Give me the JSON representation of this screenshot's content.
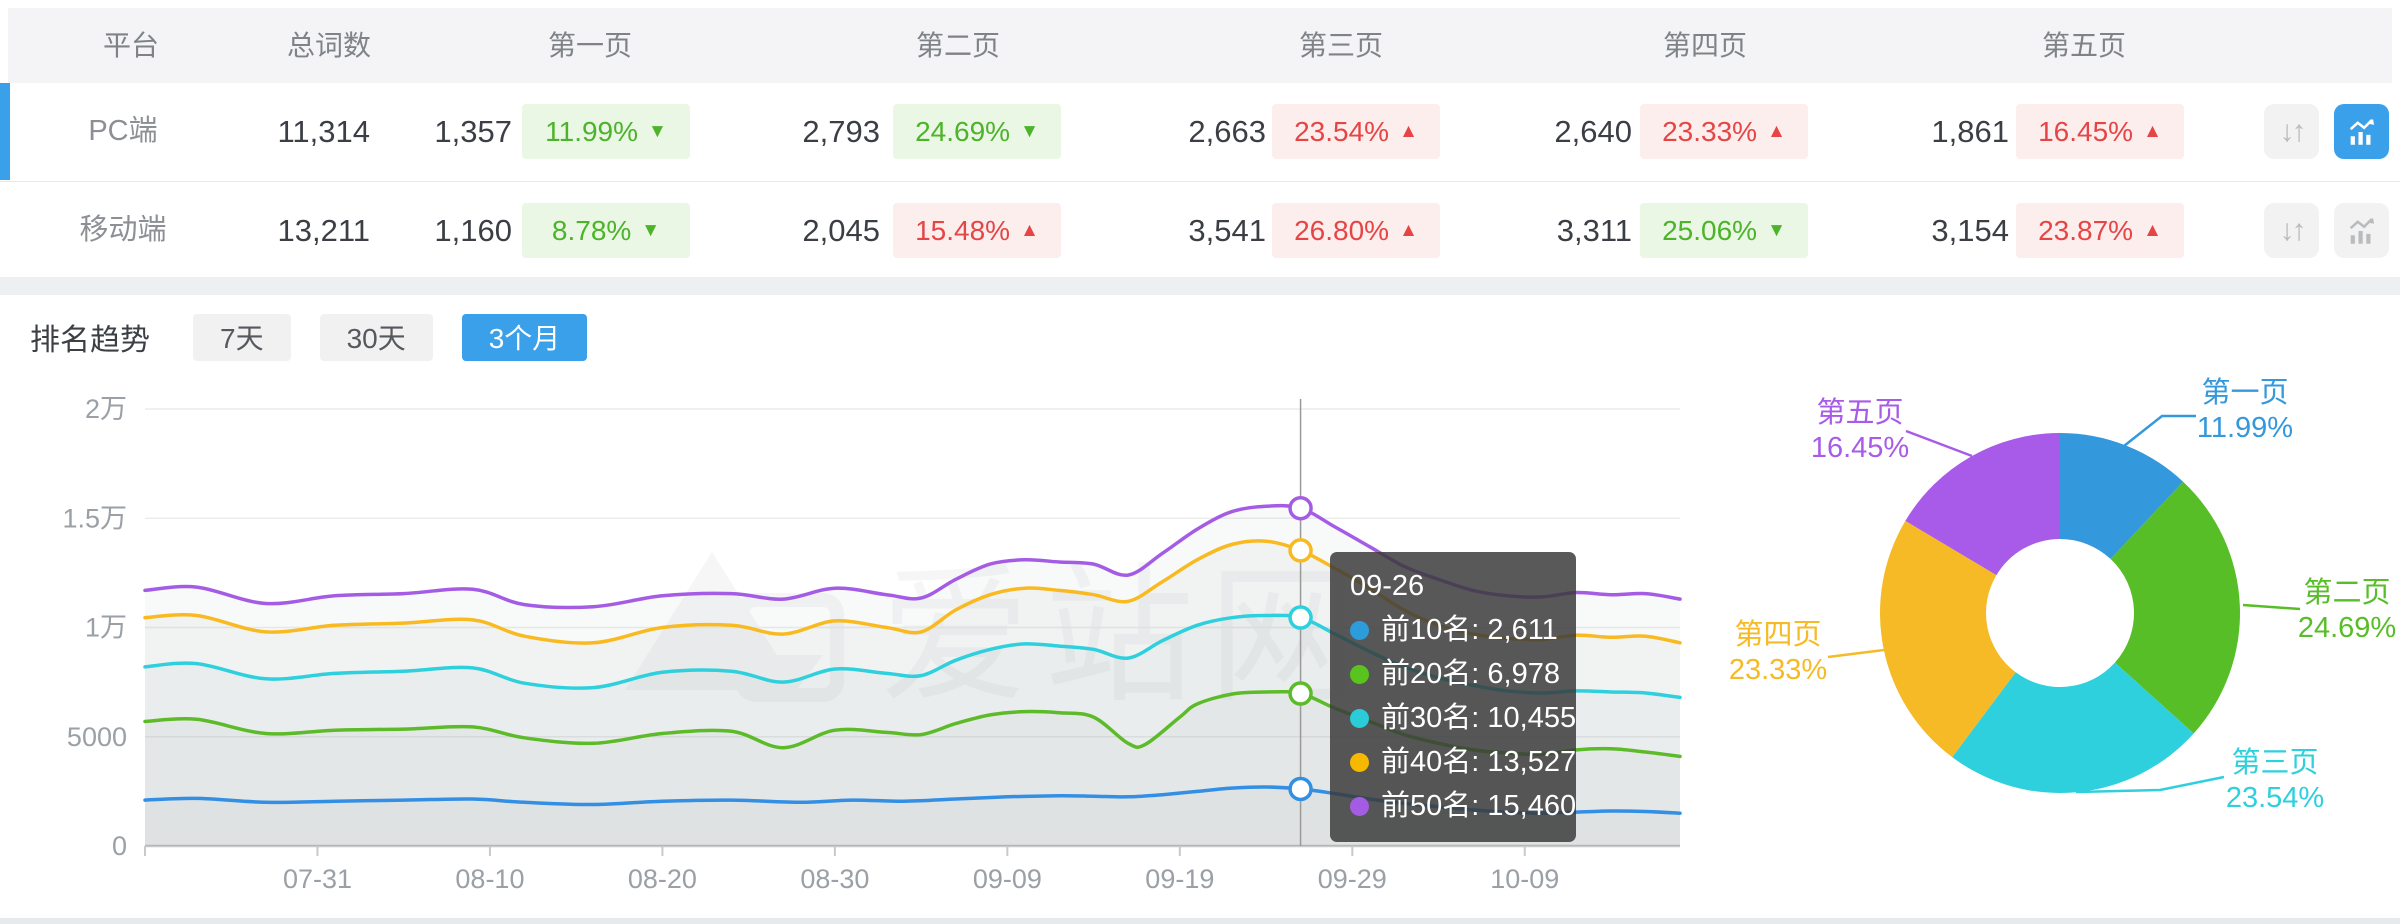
{
  "table": {
    "columns": [
      "平台",
      "总词数",
      "第一页",
      "第二页",
      "第三页",
      "第四页",
      "第五页"
    ],
    "rows": [
      {
        "platform": "PC端",
        "total": "11,314",
        "selected": true,
        "pages": [
          {
            "count": "1,357",
            "pct": "11.99%",
            "dir": "down"
          },
          {
            "count": "2,793",
            "pct": "24.69%",
            "dir": "down"
          },
          {
            "count": "2,663",
            "pct": "23.54%",
            "dir": "up"
          },
          {
            "count": "2,640",
            "pct": "23.33%",
            "dir": "up"
          },
          {
            "count": "1,861",
            "pct": "16.45%",
            "dir": "up"
          }
        ],
        "trend_chart_active": true
      },
      {
        "platform": "移动端",
        "total": "13,211",
        "selected": false,
        "pages": [
          {
            "count": "1,160",
            "pct": "8.78%",
            "dir": "down"
          },
          {
            "count": "2,045",
            "pct": "15.48%",
            "dir": "up"
          },
          {
            "count": "3,541",
            "pct": "26.80%",
            "dir": "up"
          },
          {
            "count": "3,311",
            "pct": "25.06%",
            "dir": "down"
          },
          {
            "count": "3,154",
            "pct": "23.87%",
            "dir": "up"
          }
        ],
        "trend_chart_active": false
      }
    ]
  },
  "trend": {
    "label": "排名趋势",
    "ranges": [
      "7天",
      "30天",
      "3个月"
    ],
    "active": "3个月"
  },
  "tooltip": {
    "date": "09-26",
    "items": [
      {
        "label": "前10名",
        "value": "2,611",
        "color": "#2d9cdb"
      },
      {
        "label": "前20名",
        "value": "6,978",
        "color": "#5ac41e"
      },
      {
        "label": "前30名",
        "value": "10,455",
        "color": "#2accd8"
      },
      {
        "label": "前40名",
        "value": "13,527",
        "color": "#f9b800"
      },
      {
        "label": "前50名",
        "value": "15,460",
        "color": "#a55ce5"
      }
    ]
  },
  "watermark": "爱站网",
  "colors": {
    "accent_blue": "#3aa0e9",
    "badge_green": "#4cb32a",
    "badge_red": "#e54545"
  },
  "chart_data": [
    {
      "type": "line",
      "title": "排名趋势 (3个月)",
      "x_axis": {
        "start_date": "07-21",
        "end_date": "10-18",
        "tick_labels": [
          "07-31",
          "08-10",
          "08-20",
          "08-30",
          "09-09",
          "09-19",
          "09-29",
          "10-09"
        ],
        "tick_days": [
          10,
          20,
          30,
          40,
          50,
          60,
          70,
          80
        ]
      },
      "y_axis": {
        "labels": [
          "0",
          "5000",
          "1万",
          "1.5万",
          "2万"
        ],
        "values": [
          0,
          5000,
          10000,
          15000,
          20000
        ],
        "max": 20000
      },
      "grid": true,
      "hover": {
        "day": 67,
        "date": "09-26"
      },
      "series": [
        {
          "name": "前10名",
          "color": "#338fe4",
          "points": [
            [
              0,
              2100
            ],
            [
              3,
              2180
            ],
            [
              7,
              2000
            ],
            [
              11,
              2050
            ],
            [
              15,
              2100
            ],
            [
              19,
              2150
            ],
            [
              22,
              2000
            ],
            [
              26,
              1900
            ],
            [
              30,
              2050
            ],
            [
              34,
              2100
            ],
            [
              38,
              2000
            ],
            [
              41,
              2100
            ],
            [
              44,
              2050
            ],
            [
              47,
              2150
            ],
            [
              50,
              2250
            ],
            [
              53,
              2300
            ],
            [
              55,
              2280
            ],
            [
              57,
              2250
            ],
            [
              59,
              2350
            ],
            [
              61,
              2500
            ],
            [
              63,
              2650
            ],
            [
              65,
              2700
            ],
            [
              67,
              2611
            ],
            [
              69,
              2400
            ],
            [
              71,
              2150
            ],
            [
              73,
              1950
            ],
            [
              75,
              1800
            ],
            [
              77,
              1650
            ],
            [
              79,
              1550
            ],
            [
              81,
              1500
            ],
            [
              83,
              1550
            ],
            [
              85,
              1600
            ],
            [
              87,
              1580
            ],
            [
              89,
              1500
            ]
          ]
        },
        {
          "name": "前20名",
          "color": "#5dbb2a",
          "points": [
            [
              0,
              5700
            ],
            [
              3,
              5800
            ],
            [
              7,
              5150
            ],
            [
              11,
              5300
            ],
            [
              15,
              5350
            ],
            [
              19,
              5450
            ],
            [
              22,
              4950
            ],
            [
              26,
              4700
            ],
            [
              30,
              5150
            ],
            [
              34,
              5250
            ],
            [
              37,
              4500
            ],
            [
              40,
              5300
            ],
            [
              43,
              5200
            ],
            [
              45,
              5100
            ],
            [
              47,
              5600
            ],
            [
              49,
              6000
            ],
            [
              51,
              6150
            ],
            [
              53,
              6100
            ],
            [
              55,
              5900
            ],
            [
              57,
              4700
            ],
            [
              58,
              4650
            ],
            [
              60,
              5900
            ],
            [
              61,
              6500
            ],
            [
              63,
              6950
            ],
            [
              65,
              7050
            ],
            [
              67,
              6978
            ],
            [
              69,
              6300
            ],
            [
              71,
              5700
            ],
            [
              73,
              5100
            ],
            [
              75,
              4700
            ],
            [
              77,
              4400
            ],
            [
              79,
              4250
            ],
            [
              81,
              4200
            ],
            [
              83,
              4400
            ],
            [
              85,
              4450
            ],
            [
              87,
              4300
            ],
            [
              89,
              4100
            ]
          ]
        },
        {
          "name": "前30名",
          "color": "#2fd0dd",
          "points": [
            [
              0,
              8200
            ],
            [
              3,
              8350
            ],
            [
              7,
              7650
            ],
            [
              11,
              7900
            ],
            [
              15,
              8000
            ],
            [
              19,
              8150
            ],
            [
              22,
              7450
            ],
            [
              26,
              7250
            ],
            [
              30,
              7950
            ],
            [
              34,
              8000
            ],
            [
              37,
              7500
            ],
            [
              40,
              8100
            ],
            [
              43,
              7900
            ],
            [
              45,
              7800
            ],
            [
              47,
              8500
            ],
            [
              49,
              9000
            ],
            [
              51,
              9250
            ],
            [
              53,
              9150
            ],
            [
              55,
              9000
            ],
            [
              57,
              8600
            ],
            [
              59,
              9400
            ],
            [
              61,
              10100
            ],
            [
              63,
              10450
            ],
            [
              65,
              10550
            ],
            [
              67,
              10455
            ],
            [
              69,
              9700
            ],
            [
              71,
              8900
            ],
            [
              73,
              8200
            ],
            [
              75,
              7700
            ],
            [
              77,
              7350
            ],
            [
              79,
              7100
            ],
            [
              81,
              7000
            ],
            [
              83,
              7100
            ],
            [
              85,
              7050
            ],
            [
              87,
              7000
            ],
            [
              89,
              6800
            ]
          ]
        },
        {
          "name": "前40名",
          "color": "#f8ba20",
          "points": [
            [
              0,
              10450
            ],
            [
              3,
              10550
            ],
            [
              7,
              9800
            ],
            [
              11,
              10100
            ],
            [
              15,
              10200
            ],
            [
              19,
              10350
            ],
            [
              22,
              9600
            ],
            [
              26,
              9300
            ],
            [
              30,
              10000
            ],
            [
              34,
              10100
            ],
            [
              37,
              9700
            ],
            [
              40,
              10300
            ],
            [
              43,
              10000
            ],
            [
              45,
              9800
            ],
            [
              47,
              10800
            ],
            [
              49,
              11500
            ],
            [
              51,
              11800
            ],
            [
              53,
              11700
            ],
            [
              55,
              11500
            ],
            [
              57,
              11200
            ],
            [
              59,
              12100
            ],
            [
              61,
              13100
            ],
            [
              63,
              13800
            ],
            [
              65,
              13950
            ],
            [
              67,
              13527
            ],
            [
              69,
              12700
            ],
            [
              71,
              11800
            ],
            [
              73,
              10800
            ],
            [
              75,
              10100
            ],
            [
              77,
              9700
            ],
            [
              79,
              9500
            ],
            [
              81,
              9450
            ],
            [
              83,
              9650
            ],
            [
              85,
              9550
            ],
            [
              87,
              9600
            ],
            [
              89,
              9300
            ]
          ]
        },
        {
          "name": "前50名",
          "color": "#a55ce5",
          "points": [
            [
              0,
              11700
            ],
            [
              3,
              11850
            ],
            [
              7,
              11100
            ],
            [
              11,
              11450
            ],
            [
              15,
              11550
            ],
            [
              19,
              11750
            ],
            [
              22,
              11050
            ],
            [
              26,
              10950
            ],
            [
              30,
              11450
            ],
            [
              34,
              11550
            ],
            [
              37,
              11300
            ],
            [
              40,
              11800
            ],
            [
              43,
              11500
            ],
            [
              45,
              11350
            ],
            [
              47,
              12200
            ],
            [
              49,
              12900
            ],
            [
              51,
              13100
            ],
            [
              53,
              13000
            ],
            [
              55,
              12900
            ],
            [
              57,
              12400
            ],
            [
              59,
              13400
            ],
            [
              61,
              14500
            ],
            [
              63,
              15300
            ],
            [
              65,
              15550
            ],
            [
              67,
              15460
            ],
            [
              69,
              14600
            ],
            [
              71,
              13700
            ],
            [
              73,
              12800
            ],
            [
              75,
              12200
            ],
            [
              77,
              11700
            ],
            [
              79,
              11450
            ],
            [
              81,
              11400
            ],
            [
              83,
              11600
            ],
            [
              85,
              11500
            ],
            [
              87,
              11550
            ],
            [
              89,
              11300
            ]
          ]
        }
      ]
    },
    {
      "type": "donut",
      "unit": "%",
      "slices": [
        {
          "label": "第一页",
          "value": 11.99,
          "color": "#3398dc"
        },
        {
          "label": "第二页",
          "value": 24.69,
          "color": "#57be27"
        },
        {
          "label": "第三页",
          "value": 23.54,
          "color": "#2fd0dd"
        },
        {
          "label": "第四页",
          "value": 23.33,
          "color": "#f6ba26"
        },
        {
          "label": "第五页",
          "value": 16.45,
          "color": "#a85ae8"
        }
      ]
    }
  ]
}
